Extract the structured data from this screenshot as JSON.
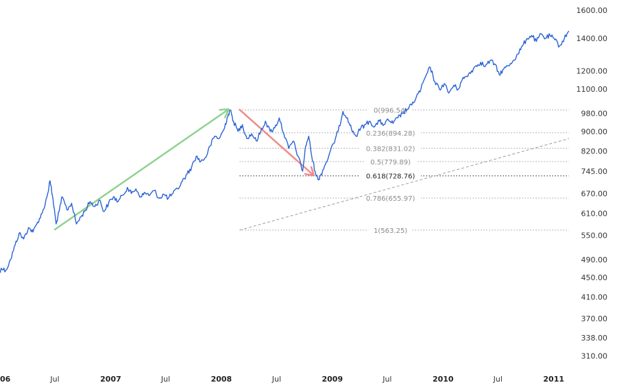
{
  "chart_data": {
    "type": "line",
    "title": "",
    "xlabel": "",
    "ylabel": "",
    "y_scale": "log",
    "ylim": [
      290,
      1680
    ],
    "xlim": [
      "2006-01-01",
      "2011-03-15"
    ],
    "y_ticks": [
      "1600.00",
      "1400.00",
      "1200.00",
      "1100.00",
      "980.00",
      "900.00",
      "820.00",
      "745.00",
      "670.00",
      "610.00",
      "550.00",
      "490.00",
      "450.00",
      "410.00",
      "370.00",
      "338.00",
      "310.00"
    ],
    "x_ticks": [
      {
        "date": "2006-01-01",
        "label": "2006",
        "major": true
      },
      {
        "date": "2006-07-01",
        "label": "Jul",
        "major": false
      },
      {
        "date": "2007-01-01",
        "label": "2007",
        "major": true
      },
      {
        "date": "2007-07-01",
        "label": "Jul",
        "major": false
      },
      {
        "date": "2008-01-01",
        "label": "2008",
        "major": true
      },
      {
        "date": "2008-07-01",
        "label": "Jul",
        "major": false
      },
      {
        "date": "2009-01-01",
        "label": "2009",
        "major": true
      },
      {
        "date": "2009-07-01",
        "label": "Jul",
        "major": false
      },
      {
        "date": "2010-01-01",
        "label": "2010",
        "major": true
      },
      {
        "date": "2010-07-01",
        "label": "Jul",
        "major": false
      },
      {
        "date": "2011-01-01",
        "label": "2011",
        "major": true
      }
    ],
    "grid": false,
    "series": [
      {
        "color": "#2962d4",
        "points": [
          [
            "2005-12-20",
            450
          ],
          [
            "2006-01-05",
            470
          ],
          [
            "2006-01-20",
            465
          ],
          [
            "2006-02-05",
            490
          ],
          [
            "2006-02-20",
            525
          ],
          [
            "2006-03-05",
            555
          ],
          [
            "2006-03-20",
            540
          ],
          [
            "2006-04-05",
            570
          ],
          [
            "2006-04-20",
            558
          ],
          [
            "2006-05-05",
            585
          ],
          [
            "2006-05-20",
            610
          ],
          [
            "2006-06-05",
            660
          ],
          [
            "2006-06-15",
            712
          ],
          [
            "2006-06-25",
            650
          ],
          [
            "2006-07-05",
            580
          ],
          [
            "2006-07-15",
            615
          ],
          [
            "2006-07-25",
            660
          ],
          [
            "2006-08-10",
            620
          ],
          [
            "2006-08-25",
            640
          ],
          [
            "2006-09-10",
            580
          ],
          [
            "2006-09-25",
            600
          ],
          [
            "2006-10-10",
            620
          ],
          [
            "2006-10-25",
            645
          ],
          [
            "2006-11-10",
            630
          ],
          [
            "2006-11-25",
            650
          ],
          [
            "2006-12-10",
            615
          ],
          [
            "2006-12-25",
            640
          ],
          [
            "2007-01-10",
            660
          ],
          [
            "2007-01-25",
            645
          ],
          [
            "2007-02-10",
            665
          ],
          [
            "2007-02-25",
            690
          ],
          [
            "2007-03-10",
            670
          ],
          [
            "2007-03-25",
            685
          ],
          [
            "2007-04-10",
            660
          ],
          [
            "2007-04-25",
            672
          ],
          [
            "2007-05-10",
            665
          ],
          [
            "2007-05-25",
            680
          ],
          [
            "2007-06-10",
            655
          ],
          [
            "2007-06-25",
            668
          ],
          [
            "2007-07-10",
            655
          ],
          [
            "2007-07-25",
            670
          ],
          [
            "2007-08-10",
            685
          ],
          [
            "2007-08-25",
            710
          ],
          [
            "2007-09-10",
            735
          ],
          [
            "2007-09-25",
            760
          ],
          [
            "2007-10-10",
            800
          ],
          [
            "2007-10-25",
            780
          ],
          [
            "2007-11-10",
            795
          ],
          [
            "2007-11-25",
            840
          ],
          [
            "2007-12-10",
            880
          ],
          [
            "2007-12-25",
            870
          ],
          [
            "2008-01-10",
            910
          ],
          [
            "2008-01-20",
            960
          ],
          [
            "2008-01-30",
            996
          ],
          [
            "2008-02-10",
            945
          ],
          [
            "2008-02-25",
            900
          ],
          [
            "2008-03-10",
            930
          ],
          [
            "2008-03-25",
            870
          ],
          [
            "2008-04-10",
            890
          ],
          [
            "2008-04-25",
            860
          ],
          [
            "2008-05-10",
            900
          ],
          [
            "2008-05-25",
            945
          ],
          [
            "2008-06-10",
            900
          ],
          [
            "2008-06-25",
            915
          ],
          [
            "2008-07-10",
            960
          ],
          [
            "2008-07-25",
            890
          ],
          [
            "2008-08-10",
            830
          ],
          [
            "2008-08-25",
            860
          ],
          [
            "2008-09-10",
            800
          ],
          [
            "2008-09-25",
            745
          ],
          [
            "2008-10-05",
            840
          ],
          [
            "2008-10-15",
            880
          ],
          [
            "2008-10-25",
            800
          ],
          [
            "2008-11-05",
            745
          ],
          [
            "2008-11-15",
            715
          ],
          [
            "2008-11-25",
            735
          ],
          [
            "2008-12-05",
            760
          ],
          [
            "2008-12-20",
            800
          ],
          [
            "2009-01-05",
            850
          ],
          [
            "2009-01-20",
            900
          ],
          [
            "2009-02-05",
            990
          ],
          [
            "2009-02-20",
            960
          ],
          [
            "2009-03-05",
            910
          ],
          [
            "2009-03-20",
            880
          ],
          [
            "2009-04-05",
            915
          ],
          [
            "2009-04-20",
            930
          ],
          [
            "2009-05-05",
            945
          ],
          [
            "2009-05-20",
            920
          ],
          [
            "2009-06-05",
            945
          ],
          [
            "2009-06-20",
            930
          ],
          [
            "2009-07-05",
            950
          ],
          [
            "2009-07-20",
            935
          ],
          [
            "2009-08-05",
            960
          ],
          [
            "2009-08-20",
            980
          ],
          [
            "2009-09-05",
            1000
          ],
          [
            "2009-09-20",
            1020
          ],
          [
            "2009-10-05",
            1060
          ],
          [
            "2009-10-20",
            1100
          ],
          [
            "2009-11-05",
            1170
          ],
          [
            "2009-11-20",
            1220
          ],
          [
            "2009-12-05",
            1140
          ],
          [
            "2009-12-20",
            1100
          ],
          [
            "2010-01-05",
            1130
          ],
          [
            "2010-01-20",
            1080
          ],
          [
            "2010-02-05",
            1120
          ],
          [
            "2010-02-20",
            1100
          ],
          [
            "2010-03-05",
            1150
          ],
          [
            "2010-03-20",
            1170
          ],
          [
            "2010-04-05",
            1200
          ],
          [
            "2010-04-20",
            1230
          ],
          [
            "2010-05-05",
            1250
          ],
          [
            "2010-05-20",
            1225
          ],
          [
            "2010-06-05",
            1260
          ],
          [
            "2010-06-20",
            1240
          ],
          [
            "2010-07-05",
            1180
          ],
          [
            "2010-07-20",
            1210
          ],
          [
            "2010-08-05",
            1230
          ],
          [
            "2010-08-20",
            1260
          ],
          [
            "2010-09-05",
            1300
          ],
          [
            "2010-09-20",
            1350
          ],
          [
            "2010-10-05",
            1400
          ],
          [
            "2010-10-20",
            1420
          ],
          [
            "2010-11-05",
            1380
          ],
          [
            "2010-11-20",
            1430
          ],
          [
            "2010-12-05",
            1400
          ],
          [
            "2010-12-20",
            1420
          ],
          [
            "2011-01-05",
            1390
          ],
          [
            "2011-01-20",
            1350
          ],
          [
            "2011-02-05",
            1400
          ],
          [
            "2011-02-20",
            1450
          ]
        ]
      }
    ],
    "annotations": {
      "green_arrow": {
        "color": "#8fd18f",
        "from": [
          "2006-07-01",
          565
        ],
        "to": [
          "2008-01-25",
          1000
        ]
      },
      "red_arrow": {
        "color": "#f08a8a",
        "from": [
          "2008-03-01",
          998
        ],
        "to": [
          "2008-11-01",
          730
        ]
      },
      "trendline": {
        "color": "#9a9a9a",
        "from": [
          "2008-03-01",
          563.25
        ],
        "to": [
          "2011-02-20",
          870
        ]
      },
      "fibonacci": {
        "start": "2008-03-01",
        "end": "2011-02-20",
        "color": "#8a8a8a",
        "levels": [
          {
            "label": "0(996.54)",
            "value": 996.54,
            "active": false
          },
          {
            "label": "0.236(894.28)",
            "value": 894.28,
            "active": false
          },
          {
            "label": "0.382(831.02)",
            "value": 831.02,
            "active": false
          },
          {
            "label": "0.5(779.89)",
            "value": 779.89,
            "active": false
          },
          {
            "label": "0.618(728.76)",
            "value": 728.76,
            "active": true
          },
          {
            "label": "0.786(655.97)",
            "value": 655.97,
            "active": false
          },
          {
            "label": "1(563.25)",
            "value": 563.25,
            "active": false
          }
        ]
      }
    }
  }
}
